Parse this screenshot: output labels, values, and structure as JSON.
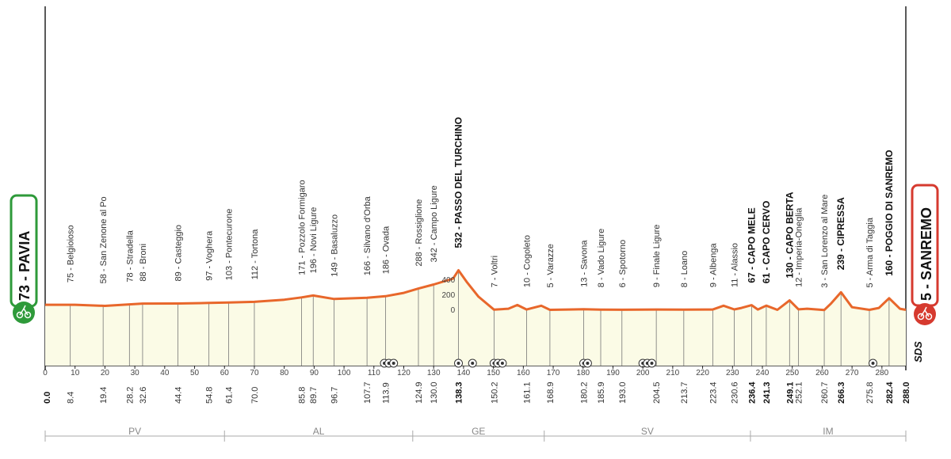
{
  "chart_data": {
    "type": "area",
    "xlim": [
      0,
      288
    ],
    "x_ticks": [
      0,
      10,
      20,
      30,
      40,
      50,
      60,
      70,
      80,
      90,
      100,
      110,
      120,
      130,
      140,
      150,
      160,
      170,
      180,
      190,
      200,
      210,
      220,
      230,
      240,
      250,
      260,
      270,
      280
    ],
    "y_ticks": [
      400,
      200,
      0
    ],
    "profile": [
      [
        0,
        73
      ],
      [
        10,
        73
      ],
      [
        20,
        58
      ],
      [
        28.2,
        78
      ],
      [
        32.6,
        88
      ],
      [
        44.4,
        89
      ],
      [
        54.8,
        97
      ],
      [
        61.4,
        103
      ],
      [
        70,
        112
      ],
      [
        80,
        140
      ],
      [
        85.8,
        171
      ],
      [
        89.7,
        196
      ],
      [
        96.7,
        149
      ],
      [
        107.7,
        166
      ],
      [
        113.9,
        186
      ],
      [
        120,
        230
      ],
      [
        124.9,
        288
      ],
      [
        130,
        342
      ],
      [
        136.5,
        420
      ],
      [
        138.3,
        532
      ],
      [
        141,
        380
      ],
      [
        145,
        180
      ],
      [
        150.2,
        7
      ],
      [
        155,
        20
      ],
      [
        158,
        70
      ],
      [
        161.1,
        10
      ],
      [
        166,
        60
      ],
      [
        168.9,
        5
      ],
      [
        175,
        10
      ],
      [
        180.2,
        13
      ],
      [
        185.9,
        8
      ],
      [
        193,
        6
      ],
      [
        204.5,
        9
      ],
      [
        213.7,
        8
      ],
      [
        223.4,
        9
      ],
      [
        227,
        60
      ],
      [
        230.6,
        11
      ],
      [
        233,
        30
      ],
      [
        236.4,
        67
      ],
      [
        238.5,
        10
      ],
      [
        241.3,
        61
      ],
      [
        245,
        5
      ],
      [
        249.1,
        130
      ],
      [
        252.1,
        12
      ],
      [
        255,
        20
      ],
      [
        260.7,
        3
      ],
      [
        263,
        90
      ],
      [
        266.3,
        239
      ],
      [
        270,
        40
      ],
      [
        275.8,
        5
      ],
      [
        279,
        30
      ],
      [
        282.4,
        160
      ],
      [
        286,
        20
      ],
      [
        288,
        5
      ]
    ],
    "places": [
      {
        "km": "0.0",
        "x": 0,
        "label": "73 - PAVIA",
        "bold": true
      },
      {
        "km": "8.4",
        "x": 8.4,
        "label": "75 - Belgioioso"
      },
      {
        "km": "19.4",
        "x": 19.4,
        "label": "58 - San Zenone al Po"
      },
      {
        "km": "28.2",
        "x": 28.2,
        "label": "78 - Stradella"
      },
      {
        "km": "32.6",
        "x": 32.6,
        "label": "88 - Broni"
      },
      {
        "km": "44.4",
        "x": 44.4,
        "label": "89 - Casteggio"
      },
      {
        "km": "54.8",
        "x": 54.8,
        "label": "97 - Voghera"
      },
      {
        "km": "61.4",
        "x": 61.4,
        "label": "103 - Pontecurone"
      },
      {
        "km": "70.0",
        "x": 70,
        "label": "112 - Tortona"
      },
      {
        "km": "85.8",
        "x": 85.8,
        "label": "171 - Pozzolo Formigaro"
      },
      {
        "km": "89.7",
        "x": 89.7,
        "label": "196 - Novi Ligure"
      },
      {
        "km": "96.7",
        "x": 96.7,
        "label": "149 - Basaluzzo"
      },
      {
        "km": "107.7",
        "x": 107.7,
        "label": "166 - Silvano d'Orba"
      },
      {
        "km": "113.9",
        "x": 113.9,
        "label": "186 - Ovada"
      },
      {
        "km": "124.9",
        "x": 124.9,
        "label": "288 - Rossiglione"
      },
      {
        "km": "130.0",
        "x": 130,
        "label": "342 - Campo Ligure"
      },
      {
        "km": "138.3",
        "x": 138.3,
        "label": "532 - PASSO DEL TURCHINO",
        "bold": true
      },
      {
        "km": "150.2",
        "x": 150.2,
        "label": "7 - Voltri"
      },
      {
        "km": "161.1",
        "x": 161.1,
        "label": "10 - Cogoleto"
      },
      {
        "km": "168.9",
        "x": 168.9,
        "label": "5 - Varazze"
      },
      {
        "km": "180.2",
        "x": 180.2,
        "label": "13 - Savona"
      },
      {
        "km": "185.9",
        "x": 185.9,
        "label": "8 - Vado Ligure"
      },
      {
        "km": "193.0",
        "x": 193,
        "label": "6 - Spotorno"
      },
      {
        "km": "204.5",
        "x": 204.5,
        "label": "9 - Finale Ligure"
      },
      {
        "km": "213.7",
        "x": 213.7,
        "label": "8 - Loano"
      },
      {
        "km": "223.4",
        "x": 223.4,
        "label": "9 - Albenga"
      },
      {
        "km": "230.6",
        "x": 230.6,
        "label": "11 - Alassio"
      },
      {
        "km": "236.4",
        "x": 236.4,
        "label": "67 - CAPO MELE",
        "bold": true
      },
      {
        "km": "241.3",
        "x": 241.3,
        "label": "61 - CAPO CERVO",
        "bold": true
      },
      {
        "km": "249.1",
        "x": 249.1,
        "label": "130 - CAPO BERTA",
        "bold": true
      },
      {
        "km": "252.1",
        "x": 252.1,
        "label": "12 - Imperia-Oneglia"
      },
      {
        "km": "260.7",
        "x": 260.7,
        "label": "3 - San Lorenzo al Mare"
      },
      {
        "km": "266.3",
        "x": 266.3,
        "label": "239 - CIPRESSA",
        "bold": true
      },
      {
        "km": "275.8",
        "x": 275.8,
        "label": "5 - Arma di Taggia"
      },
      {
        "km": "282.4",
        "x": 282.4,
        "label": "160 - POGGIO DI SANREMO",
        "bold": true
      },
      {
        "km": "288.0",
        "x": 288,
        "label": "5 - SANREMO",
        "bold": true
      }
    ],
    "regions": [
      {
        "name": "PV",
        "from": 0,
        "to": 60
      },
      {
        "name": "AL",
        "from": 60,
        "to": 123
      },
      {
        "name": "GE",
        "from": 123,
        "to": 167
      },
      {
        "name": "SV",
        "from": 167,
        "to": 236
      },
      {
        "name": "IM",
        "from": 236,
        "to": 288
      }
    ],
    "markers": [
      113.5,
      115,
      116.6,
      138.3,
      143,
      150.2,
      151.5,
      153,
      180.2,
      181.5,
      200,
      201.5,
      203,
      277
    ]
  },
  "start": {
    "label": "73 - PAVIA",
    "color": "#2e9a3a"
  },
  "finish": {
    "label": "5 - SANREMO",
    "color": "#d63a2f"
  },
  "brand": {
    "logo": "SDS"
  },
  "colors": {
    "profile": "#e8672b",
    "fill": "#fbfbe6",
    "axis": "#222222"
  }
}
